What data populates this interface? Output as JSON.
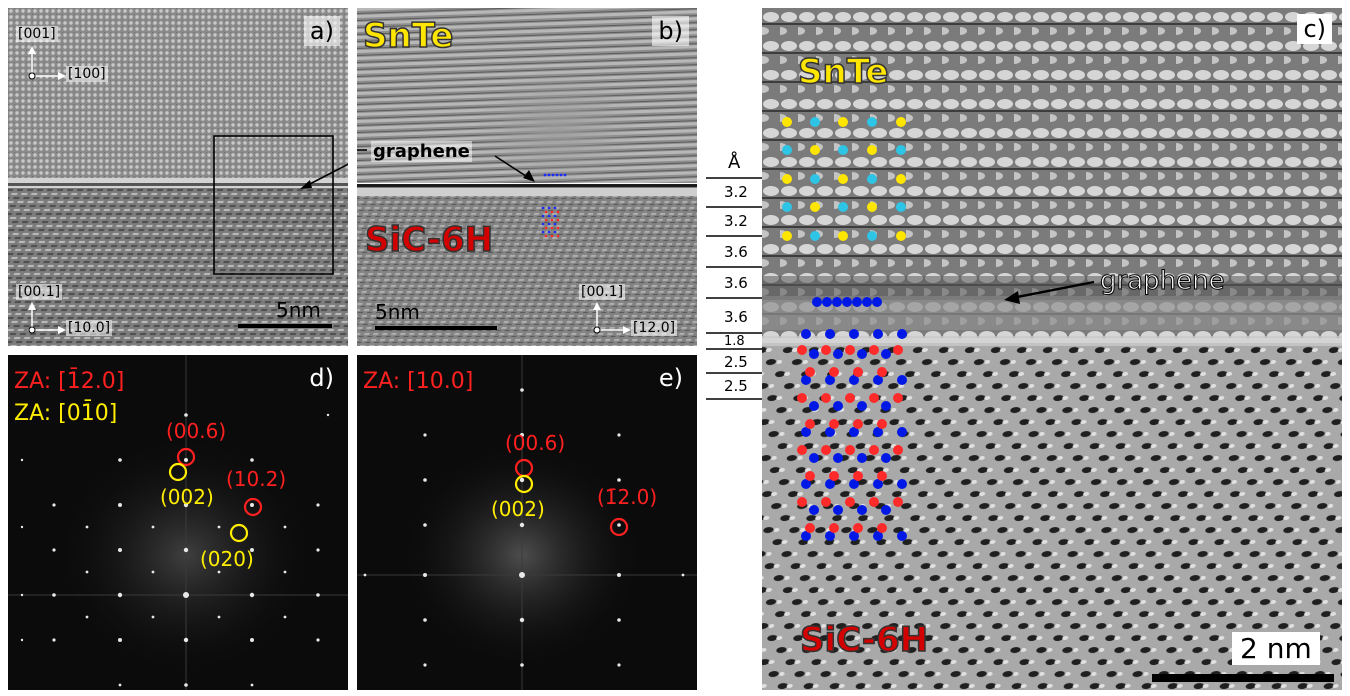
{
  "panels": {
    "a": {
      "label": "a)",
      "axis_top_v": "[001]",
      "axis_top_h": "[100]",
      "axis_bottom_v": "[00.1]",
      "axis_bottom_h": "[10.0]",
      "scale": "5nm"
    },
    "b": {
      "label": "b)",
      "top_material": "SnTe",
      "bottom_material": "SiC-6H",
      "graphene": "graphene",
      "scale": "5nm",
      "axis_v": "[00.1]",
      "axis_h": "[12.0]"
    },
    "c": {
      "label": "c)",
      "top_material": "SnTe",
      "bottom_material": "SiC-6H",
      "graphene": "graphene",
      "scale": "2 nm",
      "unit": "Å",
      "spacings": [
        "3.2",
        "3.2",
        "3.6",
        "3.6",
        "3.6",
        "1.8",
        "2.5",
        "2.5"
      ]
    },
    "d": {
      "label": "d)",
      "za_red": "ZA: [1̄2.0]",
      "za_yellow": "ZA: [01̄0]",
      "spot_006": "(00.6)",
      "spot_002": "(002)",
      "spot_102": "(10.2)",
      "spot_020": "(020)"
    },
    "e": {
      "label": "e)",
      "za_red": "ZA: [10.0]",
      "spot_006": "(00.6)",
      "spot_002": "(002)",
      "spot_120": "(1̄2.0)"
    }
  },
  "colors": {
    "tin_telluride_label": "#ffe600",
    "sic_label": "#d40000",
    "atom_yellow": "#ffe600",
    "atom_cyan": "#2ec4e6",
    "atom_blue": "#0018e6",
    "atom_red": "#ff2a2a",
    "fft_red": "#ff2020",
    "fft_yellow": "#ffee00"
  }
}
